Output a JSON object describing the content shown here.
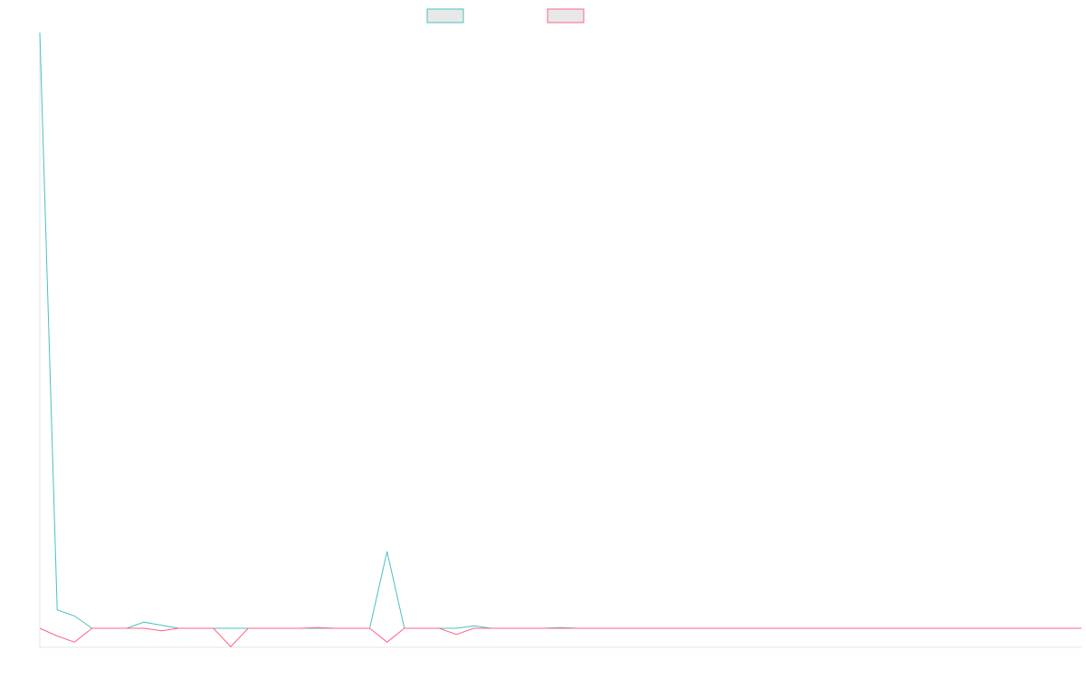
{
  "chart_data": {
    "type": "line",
    "title": "",
    "xlabel": "",
    "ylabel": "",
    "grid": false,
    "legend_position": "top-center",
    "x": [
      0,
      1,
      2,
      3,
      4,
      5,
      6,
      7,
      8,
      9,
      10,
      11,
      12,
      13,
      14,
      15,
      16,
      17,
      18,
      19,
      20,
      21,
      22,
      23,
      24,
      25,
      26,
      27,
      28,
      29,
      30,
      31,
      32,
      33,
      34,
      35,
      36,
      37,
      38,
      39,
      40,
      41,
      42,
      43,
      44,
      45,
      46,
      47,
      48,
      49,
      50,
      51,
      52,
      53,
      54,
      55,
      56,
      57,
      58,
      59,
      60
    ],
    "ylim": [
      -60,
      1900
    ],
    "series": [
      {
        "color": "#4bc0c0",
        "legend_fill": "#e8e8e8",
        "values": [
          1940,
          60,
          40,
          0,
          0,
          0,
          20,
          10,
          0,
          0,
          0,
          0,
          0,
          0,
          0,
          0,
          0,
          0,
          0,
          0,
          250,
          0,
          0,
          0,
          0,
          8,
          0,
          0,
          0,
          0,
          2,
          0,
          0,
          0,
          0,
          0,
          0,
          0,
          0,
          0,
          0,
          0,
          0,
          0,
          0,
          0,
          0,
          0,
          0,
          0,
          0,
          0,
          0,
          0,
          0,
          0,
          0,
          0,
          0,
          0,
          0
        ]
      },
      {
        "color": "#ff6384",
        "legend_fill": "#e8e8e8",
        "values": [
          0,
          -25,
          -45,
          0,
          0,
          0,
          0,
          -8,
          0,
          0,
          0,
          -60,
          0,
          0,
          0,
          0,
          2,
          0,
          0,
          0,
          -45,
          0,
          0,
          0,
          -20,
          0,
          0,
          0,
          0,
          0,
          0,
          0,
          0,
          0,
          0,
          0,
          0,
          0,
          0,
          0,
          0,
          0,
          0,
          0,
          0,
          0,
          0,
          0,
          0,
          0,
          0,
          0,
          0,
          0,
          0,
          0,
          0,
          0,
          0,
          0,
          0
        ]
      }
    ]
  }
}
